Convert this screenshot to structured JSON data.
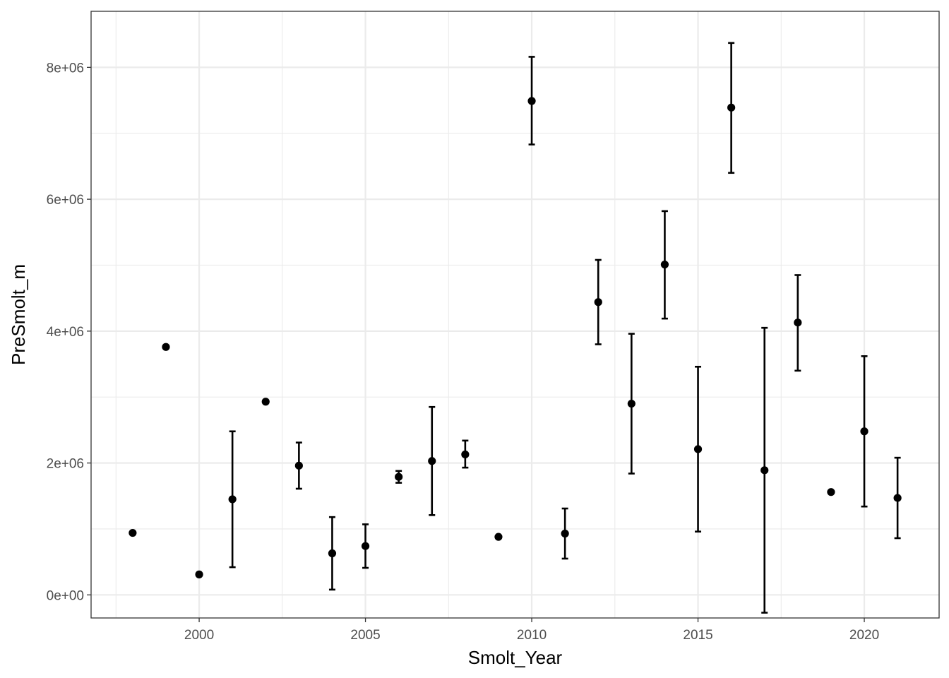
{
  "chart_data": {
    "type": "scatter",
    "xlabel": "Smolt_Year",
    "ylabel": "PreSmolt_m",
    "xlim": [
      1996.75,
      2022.25
    ],
    "ylim": [
      -350000,
      8850000
    ],
    "x_ticks": [
      2000,
      2005,
      2010,
      2015,
      2020
    ],
    "x_tick_labels": [
      "2000",
      "2005",
      "2010",
      "2015",
      "2020"
    ],
    "y_ticks": [
      0,
      2000000,
      4000000,
      6000000,
      8000000
    ],
    "y_tick_labels": [
      "0e+00",
      "2e+06",
      "4e+06",
      "6e+06",
      "8e+06"
    ],
    "grid": true,
    "legend": "none",
    "points": [
      {
        "x": 1998,
        "y": 940000,
        "ymin": null,
        "ymax": null
      },
      {
        "x": 1999,
        "y": 3760000,
        "ymin": null,
        "ymax": null
      },
      {
        "x": 2000,
        "y": 310000,
        "ymin": null,
        "ymax": null
      },
      {
        "x": 2001,
        "y": 1450000,
        "ymin": 420000,
        "ymax": 2480000
      },
      {
        "x": 2002,
        "y": 2930000,
        "ymin": null,
        "ymax": null
      },
      {
        "x": 2003,
        "y": 1960000,
        "ymin": 1610000,
        "ymax": 2310000
      },
      {
        "x": 2004,
        "y": 630000,
        "ymin": 80000,
        "ymax": 1180000
      },
      {
        "x": 2005,
        "y": 740000,
        "ymin": 410000,
        "ymax": 1070000
      },
      {
        "x": 2006,
        "y": 1790000,
        "ymin": 1700000,
        "ymax": 1880000
      },
      {
        "x": 2007,
        "y": 2030000,
        "ymin": 1210000,
        "ymax": 2850000
      },
      {
        "x": 2008,
        "y": 2130000,
        "ymin": 1930000,
        "ymax": 2340000
      },
      {
        "x": 2009,
        "y": 880000,
        "ymin": null,
        "ymax": null
      },
      {
        "x": 2010,
        "y": 7490000,
        "ymin": 6830000,
        "ymax": 8160000
      },
      {
        "x": 2011,
        "y": 930000,
        "ymin": 550000,
        "ymax": 1310000
      },
      {
        "x": 2012,
        "y": 4440000,
        "ymin": 3800000,
        "ymax": 5080000
      },
      {
        "x": 2013,
        "y": 2900000,
        "ymin": 1840000,
        "ymax": 3960000
      },
      {
        "x": 2014,
        "y": 5010000,
        "ymin": 4190000,
        "ymax": 5820000
      },
      {
        "x": 2015,
        "y": 2210000,
        "ymin": 960000,
        "ymax": 3460000
      },
      {
        "x": 2016,
        "y": 7390000,
        "ymin": 6400000,
        "ymax": 8370000
      },
      {
        "x": 2017,
        "y": 1890000,
        "ymin": -270000,
        "ymax": 4050000
      },
      {
        "x": 2018,
        "y": 4130000,
        "ymin": 3400000,
        "ymax": 4850000
      },
      {
        "x": 2019,
        "y": 1560000,
        "ymin": null,
        "ymax": null
      },
      {
        "x": 2020,
        "y": 2480000,
        "ymin": 1340000,
        "ymax": 3620000
      },
      {
        "x": 2021,
        "y": 1470000,
        "ymin": 860000,
        "ymax": 2080000
      }
    ]
  }
}
